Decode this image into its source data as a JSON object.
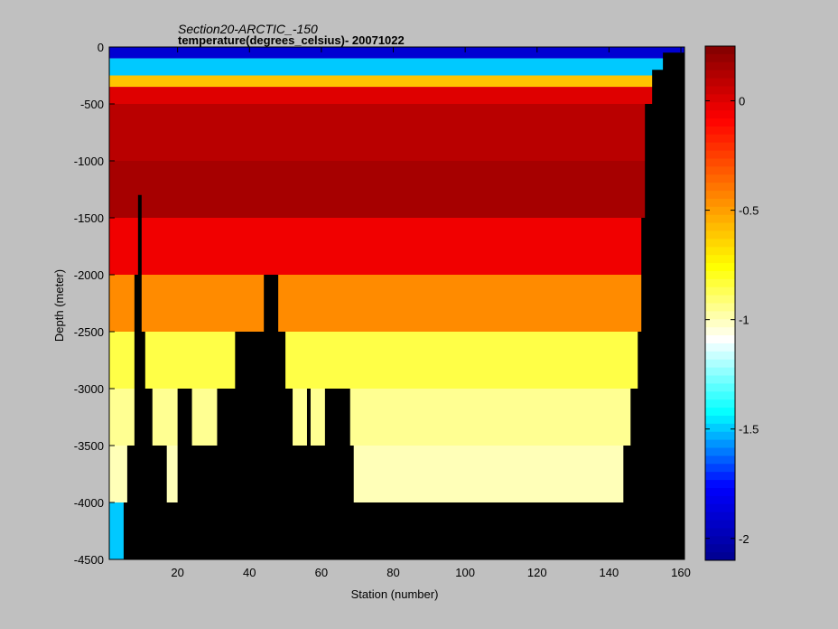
{
  "chart_data": {
    "type": "heatmap",
    "title": "Section20-ARCTIC_-150",
    "subtitle": "temperature(degrees_celsius)- 20071022",
    "xlabel": "Station (number)",
    "ylabel": "Depth (meter)",
    "xlim": [
      1,
      161
    ],
    "ylim": [
      -4500,
      0
    ],
    "x_ticks": [
      20,
      40,
      60,
      80,
      100,
      120,
      140,
      160
    ],
    "y_ticks": [
      0,
      -500,
      -1000,
      -1500,
      -2000,
      -2500,
      -3000,
      -3500,
      -4000,
      -4500
    ],
    "colorbar": {
      "clim": [
        -2.1,
        0.25
      ],
      "ticks": [
        0,
        -0.5,
        -1,
        -1.5,
        -2
      ],
      "colormap": [
        "#00008f",
        "#0000ff",
        "#00ffff",
        "#ffffff",
        "#ffff00",
        "#ff8000",
        "#ff0000",
        "#800000"
      ]
    },
    "bottom_depth": [
      [
        1,
        -4500
      ],
      [
        4,
        -4500
      ],
      [
        5,
        -4000
      ],
      [
        6,
        -3500
      ],
      [
        8,
        -2000
      ],
      [
        9,
        -1300
      ],
      [
        10,
        -2500
      ],
      [
        11,
        -3000
      ],
      [
        13,
        -3500
      ],
      [
        16,
        -3500
      ],
      [
        17,
        -4000
      ],
      [
        20,
        -3000
      ],
      [
        23,
        -3000
      ],
      [
        24,
        -3500
      ],
      [
        30,
        -3500
      ],
      [
        31,
        -3000
      ],
      [
        36,
        -2500
      ],
      [
        43,
        -2500
      ],
      [
        44,
        -2000
      ],
      [
        47,
        -2000
      ],
      [
        48,
        -2500
      ],
      [
        50,
        -3000
      ],
      [
        52,
        -3500
      ],
      [
        55,
        -3500
      ],
      [
        56,
        -3000
      ],
      [
        57,
        -3500
      ],
      [
        60,
        -3500
      ],
      [
        61,
        -3000
      ],
      [
        68,
        -3500
      ],
      [
        69,
        -4000
      ],
      [
        143,
        -4000
      ],
      [
        144,
        -3500
      ],
      [
        146,
        -3000
      ],
      [
        148,
        -2500
      ],
      [
        149,
        -1500
      ],
      [
        150,
        -500
      ],
      [
        152,
        -200
      ],
      [
        155,
        -50
      ],
      [
        161,
        0
      ]
    ],
    "layers": [
      {
        "depth": [
          0,
          -100
        ],
        "temperature": -1.9
      },
      {
        "depth": [
          -100,
          -250
        ],
        "temperature": -1.5
      },
      {
        "depth": [
          -250,
          -350
        ],
        "temperature": -0.6
      },
      {
        "depth": [
          -350,
          -500
        ],
        "temperature": 0.0
      },
      {
        "depth": [
          -500,
          -1000
        ],
        "temperature": 0.1
      },
      {
        "depth": [
          -1000,
          -1500
        ],
        "temperature": 0.15
      },
      {
        "depth": [
          -1500,
          -2000
        ],
        "temperature": -0.05
      },
      {
        "depth": [
          -2000,
          -2500
        ],
        "temperature": -0.45
      },
      {
        "depth": [
          -2500,
          -3000
        ],
        "temperature": -0.85
      },
      {
        "depth": [
          -3000,
          -3500
        ],
        "temperature": -0.95
      },
      {
        "depth": [
          -3500,
          -4000
        ],
        "temperature": -1.0
      },
      {
        "depth": [
          -4000,
          -4500
        ],
        "temperature": -1.5
      }
    ]
  }
}
